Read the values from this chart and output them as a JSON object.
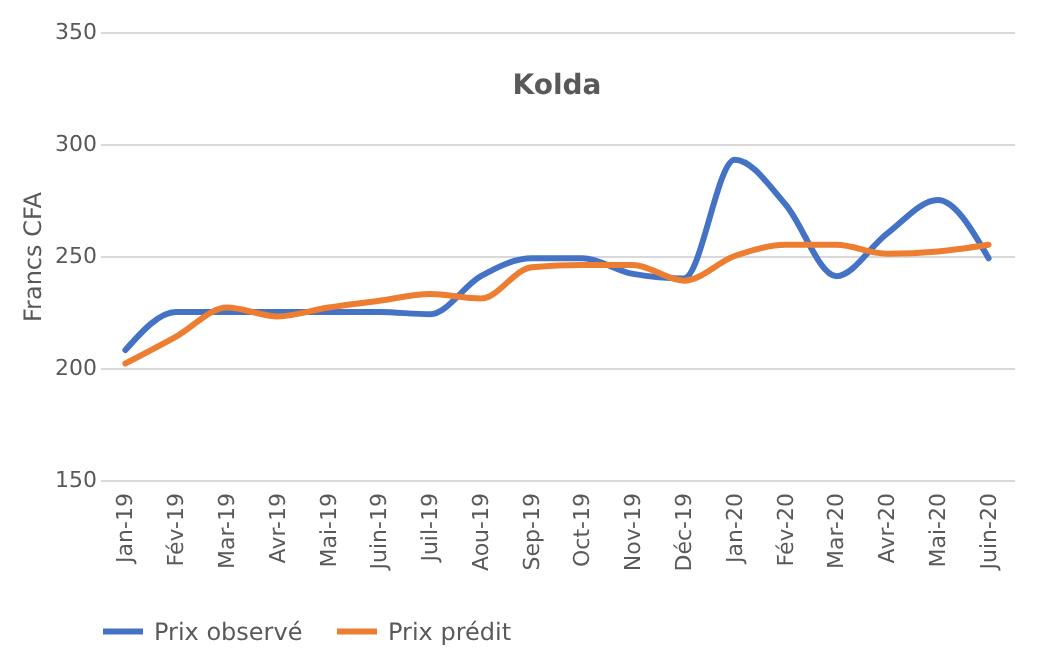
{
  "chart_data": {
    "type": "line",
    "title": "Kolda",
    "ylabel": "Francs CFA",
    "categories": [
      "Jan-19",
      "Fév-19",
      "Mar-19",
      "Avr-19",
      "Mai-19",
      "Juin-19",
      "Juil-19",
      "Aou-19",
      "Sep-19",
      "Oct-19",
      "Nov-19",
      "Déc-19",
      "Jan-20",
      "Fév-20",
      "Mar-20",
      "Avr-20",
      "Mai-20",
      "Juin-20"
    ],
    "series": [
      {
        "name": "Prix observé",
        "color": "#4472c4",
        "values": [
          208,
          225,
          225,
          225,
          225,
          225,
          224,
          241,
          249,
          249,
          242,
          240,
          293,
          273,
          241,
          260,
          275,
          249
        ]
      },
      {
        "name": "Prix prédit",
        "color": "#ed7d31",
        "values": [
          202,
          214,
          227,
          223,
          227,
          230,
          233,
          231,
          245,
          246,
          246,
          239,
          250,
          255,
          255,
          251,
          252,
          255
        ]
      }
    ],
    "ylim": [
      150,
      350
    ],
    "yticks": [
      150,
      200,
      250,
      300,
      350
    ],
    "grid": "y",
    "legend": "bottom",
    "line_style": "solid",
    "marker": "none"
  }
}
